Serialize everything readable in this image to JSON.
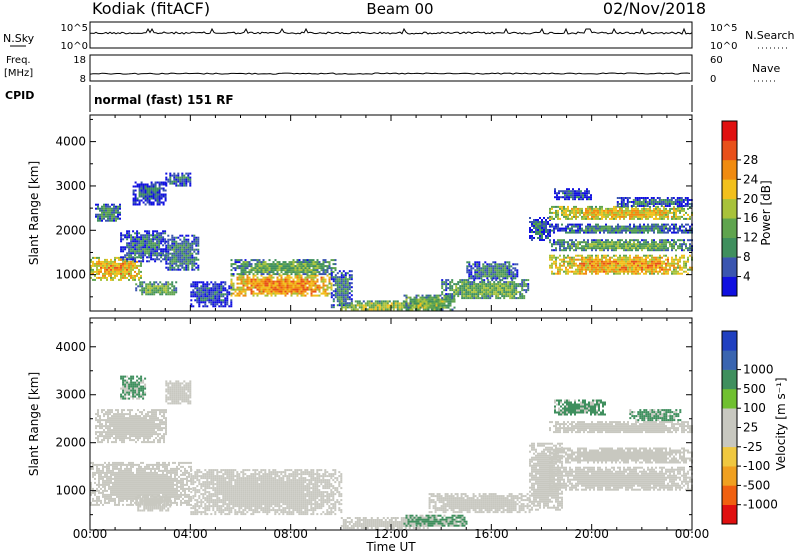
{
  "header": {
    "site": "Kodiak  (fitACF)",
    "beam": "Beam 00",
    "date": "02/Nov/2018"
  },
  "panels": {
    "nsky": {
      "label": "N.Sky",
      "ticks": [
        "10^5",
        "10^0"
      ],
      "right_label": "N.Search",
      "right_ticks": [
        "10^5",
        "10^0"
      ]
    },
    "freq": {
      "label_line1": "Freq.",
      "label_line2": "[MHz]",
      "ticks": [
        "18",
        "8"
      ],
      "right_label": "Nave",
      "right_ticks": [
        "60",
        "0"
      ]
    },
    "cpid": {
      "label": "CPID",
      "text": "normal (fast) 151 RF"
    }
  },
  "colors": {
    "power": [
      "#1010e0",
      "#3a55b0",
      "#3f8f5e",
      "#5fa44e",
      "#a8c23a",
      "#f2c01c",
      "#f08b10",
      "#e8501a",
      "#e01010"
    ],
    "velocity": [
      "#e01010",
      "#f06010",
      "#f0a020",
      "#f0c840",
      "#c8c8c0",
      "#c8c8c0",
      "#70c030",
      "#3f8f5e",
      "#3a65b0",
      "#2040c0"
    ],
    "ground": "#c8c8c0"
  },
  "chart_data": [
    {
      "type": "heatmap",
      "name": "power-panel",
      "ylabel": "Slant Range [km]",
      "xlabel": "",
      "x_ticks": [
        "00:00",
        "04:00",
        "08:00",
        "12:00",
        "16:00",
        "20:00",
        "00:00"
      ],
      "x_range": [
        0,
        24
      ],
      "ylim": [
        180,
        4600
      ],
      "y_ticks": [
        1000,
        2000,
        3000,
        4000
      ],
      "colorbar": {
        "label": "Power [dB]",
        "range": [
          0,
          32
        ],
        "ticks": [
          "4",
          "8",
          "12",
          "16",
          "20",
          "24",
          "28"
        ]
      },
      "regions": [
        {
          "t": [
            0.0,
            2.0
          ],
          "r": [
            900,
            1400
          ],
          "p": 24
        },
        {
          "t": [
            0.2,
            1.2
          ],
          "r": [
            2200,
            2600
          ],
          "p": 10
        },
        {
          "t": [
            1.2,
            3.0
          ],
          "r": [
            1300,
            2000
          ],
          "p": 8
        },
        {
          "t": [
            1.7,
            3.0
          ],
          "r": [
            2600,
            3100
          ],
          "p": 6
        },
        {
          "t": [
            1.8,
            3.4
          ],
          "r": [
            550,
            850
          ],
          "p": 14
        },
        {
          "t": [
            3.0,
            4.3
          ],
          "r": [
            1100,
            1900
          ],
          "p": 10
        },
        {
          "t": [
            3.0,
            4.0
          ],
          "r": [
            3000,
            3300
          ],
          "p": 8
        },
        {
          "t": [
            4.0,
            5.6
          ],
          "r": [
            300,
            850
          ],
          "p": 6
        },
        {
          "t": [
            5.6,
            9.6
          ],
          "r": [
            520,
            1000
          ],
          "p": 26
        },
        {
          "t": [
            5.6,
            9.8
          ],
          "r": [
            1000,
            1350
          ],
          "p": 14
        },
        {
          "t": [
            9.6,
            10.4
          ],
          "r": [
            250,
            1100
          ],
          "p": 10
        },
        {
          "t": [
            10.0,
            14.0
          ],
          "r": [
            200,
            420
          ],
          "p": 18
        },
        {
          "t": [
            12.5,
            14.5
          ],
          "r": [
            200,
            550
          ],
          "p": 16
        },
        {
          "t": [
            14.0,
            17.5
          ],
          "r": [
            450,
            900
          ],
          "p": 14
        },
        {
          "t": [
            15.0,
            17.0
          ],
          "r": [
            900,
            1300
          ],
          "p": 10
        },
        {
          "t": [
            17.5,
            18.3
          ],
          "r": [
            1800,
            2300
          ],
          "p": 8
        },
        {
          "t": [
            18.3,
            24.0
          ],
          "r": [
            2250,
            2550
          ],
          "p": 22
        },
        {
          "t": [
            18.3,
            24.0
          ],
          "r": [
            1000,
            1450
          ],
          "p": 24
        },
        {
          "t": [
            18.3,
            24.0
          ],
          "r": [
            1550,
            1800
          ],
          "p": 14
        },
        {
          "t": [
            18.3,
            24.0
          ],
          "r": [
            1950,
            2150
          ],
          "p": 10
        },
        {
          "t": [
            18.5,
            20.0
          ],
          "r": [
            2700,
            2950
          ],
          "p": 6
        },
        {
          "t": [
            21.0,
            24.0
          ],
          "r": [
            2550,
            2750
          ],
          "p": 8
        }
      ]
    },
    {
      "type": "heatmap",
      "name": "velocity-panel",
      "ylabel": "Slant Range [km]",
      "xlabel": "Time UT",
      "x_ticks": [
        "00:00",
        "04:00",
        "08:00",
        "12:00",
        "16:00",
        "20:00",
        "00:00"
      ],
      "x_range": [
        0,
        24
      ],
      "ylim": [
        180,
        4600
      ],
      "y_ticks": [
        1000,
        2000,
        3000,
        4000
      ],
      "colorbar": {
        "label": "Velocity [m s⁻¹]",
        "ticks": [
          "1000",
          "500",
          "100",
          "25",
          "-25",
          "-100",
          "-500",
          "-1000"
        ]
      },
      "regions": [
        {
          "t": [
            0.0,
            4.0
          ],
          "r": [
            700,
            1600
          ],
          "v": "ground"
        },
        {
          "t": [
            0.2,
            3.0
          ],
          "r": [
            2000,
            2700
          ],
          "v": "ground"
        },
        {
          "t": [
            1.2,
            2.2
          ],
          "r": [
            2900,
            3400
          ],
          "v": 150
        },
        {
          "t": [
            3.0,
            4.0
          ],
          "r": [
            2800,
            3300
          ],
          "v": "ground"
        },
        {
          "t": [
            1.8,
            3.2
          ],
          "r": [
            600,
            900
          ],
          "v": -80
        },
        {
          "t": [
            4.0,
            10.0
          ],
          "r": [
            500,
            1450
          ],
          "v": "ground"
        },
        {
          "t": [
            10.0,
            13.5
          ],
          "r": [
            220,
            450
          ],
          "v": "ground"
        },
        {
          "t": [
            12.5,
            15.0
          ],
          "r": [
            250,
            500
          ],
          "v": 120
        },
        {
          "t": [
            13.5,
            17.5
          ],
          "r": [
            550,
            950
          ],
          "v": "ground"
        },
        {
          "t": [
            17.5,
            18.8
          ],
          "r": [
            600,
            2000
          ],
          "v": "ground"
        },
        {
          "t": [
            18.3,
            24.0
          ],
          "r": [
            2200,
            2450
          ],
          "v": -80
        },
        {
          "t": [
            18.3,
            24.0
          ],
          "r": [
            1000,
            1500
          ],
          "v": "ground"
        },
        {
          "t": [
            18.3,
            24.0
          ],
          "r": [
            1600,
            1900
          ],
          "v": "ground"
        },
        {
          "t": [
            18.5,
            20.5
          ],
          "r": [
            2600,
            2900
          ],
          "v": 300
        },
        {
          "t": [
            21.5,
            23.5
          ],
          "r": [
            2450,
            2700
          ],
          "v": 500
        }
      ]
    }
  ]
}
